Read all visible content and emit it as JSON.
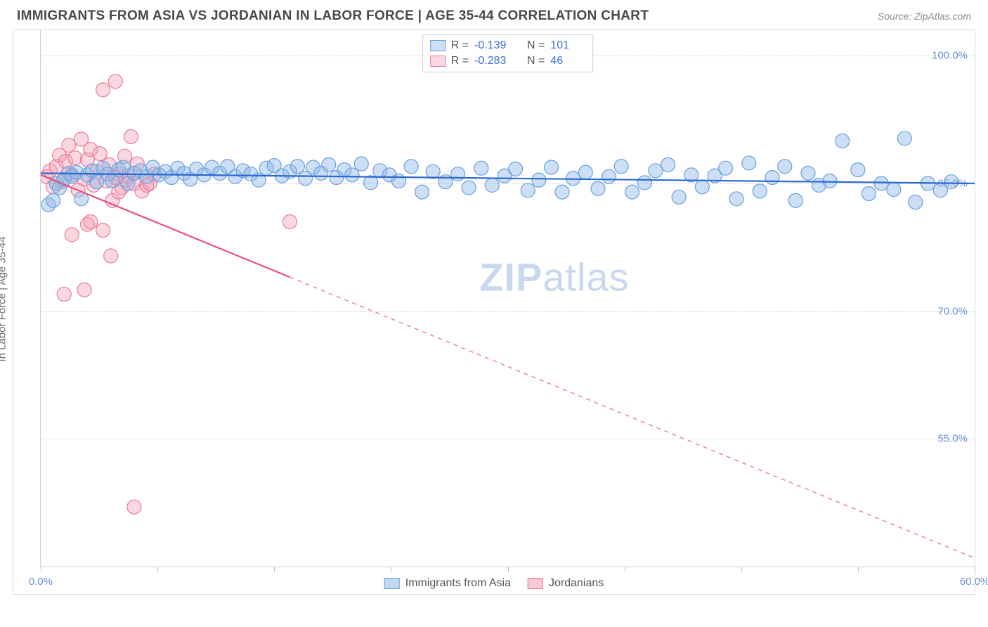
{
  "header": {
    "title": "IMMIGRANTS FROM ASIA VS JORDANIAN IN LABOR FORCE | AGE 35-44 CORRELATION CHART",
    "source": "Source: ZipAtlas.com"
  },
  "chart": {
    "type": "scatter",
    "ylabel": "In Labor Force | Age 35-44",
    "xlim": [
      0,
      60
    ],
    "ylim": [
      40,
      103
    ],
    "x_ticks": [
      0,
      7.5,
      15,
      22.5,
      30,
      37.5,
      45,
      52.5,
      60
    ],
    "x_tick_labels": {
      "0": "0.0%",
      "60": "60.0%"
    },
    "y_ticks": [
      55,
      70,
      85,
      100
    ],
    "y_tick_labels": {
      "55": "55.0%",
      "70": "70.0%",
      "85": "85.0%",
      "100": "100.0%"
    },
    "grid_color": "#d9d9d9",
    "background_color": "#ffffff",
    "axis_label_color": "#6a8fd8",
    "watermark": "ZIPatlas",
    "series": [
      {
        "name": "Immigrants from Asia",
        "marker_color": "#8fb9e8",
        "marker_fill": "rgba(143,185,232,0.45)",
        "marker_stroke": "#6aa0dd",
        "marker_radius": 10,
        "line_color": "#2b6ad0",
        "line_width": 2.2,
        "trend": {
          "x0": 0,
          "y0": 86.2,
          "x1": 60,
          "y1": 85.0
        },
        "R": "-0.139",
        "N": "101",
        "points": [
          [
            0.5,
            82.5
          ],
          [
            0.8,
            83.0
          ],
          [
            1.0,
            85.0
          ],
          [
            1.2,
            84.5
          ],
          [
            1.5,
            85.5
          ],
          [
            1.8,
            86.2
          ],
          [
            2.0,
            85.8
          ],
          [
            2.3,
            86.3
          ],
          [
            2.6,
            83.2
          ],
          [
            3.0,
            86.0
          ],
          [
            3.3,
            86.5
          ],
          [
            3.6,
            85.2
          ],
          [
            4.0,
            86.8
          ],
          [
            4.3,
            86.1
          ],
          [
            4.6,
            85.3
          ],
          [
            5.0,
            86.6
          ],
          [
            5.3,
            86.9
          ],
          [
            5.6,
            85.0
          ],
          [
            6.0,
            86.2
          ],
          [
            6.4,
            86.5
          ],
          [
            6.8,
            85.8
          ],
          [
            7.2,
            86.9
          ],
          [
            7.6,
            86.0
          ],
          [
            8.0,
            86.4
          ],
          [
            8.4,
            85.7
          ],
          [
            8.8,
            86.8
          ],
          [
            9.2,
            86.2
          ],
          [
            9.6,
            85.5
          ],
          [
            10.0,
            86.7
          ],
          [
            10.5,
            86.0
          ],
          [
            11.0,
            86.9
          ],
          [
            11.5,
            86.2
          ],
          [
            12.0,
            87.0
          ],
          [
            12.5,
            85.8
          ],
          [
            13.0,
            86.5
          ],
          [
            13.5,
            86.1
          ],
          [
            14.0,
            85.4
          ],
          [
            14.5,
            86.8
          ],
          [
            15.0,
            87.1
          ],
          [
            15.5,
            85.9
          ],
          [
            16.0,
            86.4
          ],
          [
            16.5,
            87.0
          ],
          [
            17.0,
            85.6
          ],
          [
            17.5,
            86.9
          ],
          [
            18.0,
            86.2
          ],
          [
            18.5,
            87.2
          ],
          [
            19.0,
            85.7
          ],
          [
            19.5,
            86.6
          ],
          [
            20.0,
            86.0
          ],
          [
            20.6,
            87.3
          ],
          [
            21.2,
            85.1
          ],
          [
            21.8,
            86.5
          ],
          [
            22.4,
            86.0
          ],
          [
            23.0,
            85.3
          ],
          [
            23.8,
            87.0
          ],
          [
            24.5,
            84.0
          ],
          [
            25.2,
            86.4
          ],
          [
            26.0,
            85.2
          ],
          [
            26.8,
            86.1
          ],
          [
            27.5,
            84.5
          ],
          [
            28.3,
            86.8
          ],
          [
            29.0,
            84.8
          ],
          [
            29.8,
            85.9
          ],
          [
            30.5,
            86.7
          ],
          [
            31.3,
            84.2
          ],
          [
            32.0,
            85.4
          ],
          [
            32.8,
            86.9
          ],
          [
            33.5,
            84.0
          ],
          [
            34.2,
            85.6
          ],
          [
            35.0,
            86.3
          ],
          [
            35.8,
            84.4
          ],
          [
            36.5,
            85.8
          ],
          [
            37.3,
            87.0
          ],
          [
            38.0,
            84.0
          ],
          [
            38.8,
            85.1
          ],
          [
            39.5,
            86.5
          ],
          [
            40.3,
            87.2
          ],
          [
            41.0,
            83.4
          ],
          [
            41.8,
            86.0
          ],
          [
            42.5,
            84.6
          ],
          [
            43.3,
            85.9
          ],
          [
            44.0,
            86.8
          ],
          [
            44.7,
            83.2
          ],
          [
            45.5,
            87.4
          ],
          [
            46.2,
            84.1
          ],
          [
            47.0,
            85.7
          ],
          [
            47.8,
            87.0
          ],
          [
            48.5,
            83.0
          ],
          [
            49.3,
            86.2
          ],
          [
            50.0,
            84.8
          ],
          [
            50.7,
            85.3
          ],
          [
            51.5,
            90.0
          ],
          [
            52.5,
            86.6
          ],
          [
            53.2,
            83.8
          ],
          [
            54.0,
            85.0
          ],
          [
            54.8,
            84.3
          ],
          [
            55.5,
            90.3
          ],
          [
            56.2,
            82.8
          ],
          [
            57.0,
            85.0
          ],
          [
            57.8,
            84.2
          ],
          [
            58.5,
            85.2
          ]
        ]
      },
      {
        "name": "Jordanians",
        "marker_color": "#f29db3",
        "marker_fill": "rgba(242,157,179,0.40)",
        "marker_stroke": "#ec7a98",
        "marker_radius": 10,
        "line_color": "#e8517a",
        "line_width": 2.2,
        "trend": {
          "x0": 0,
          "y0": 86.0,
          "x1": 16,
          "y1": 74.0
        },
        "trend_extrapolate": {
          "x0": 16,
          "y0": 74.0,
          "x1": 60,
          "y1": 41.0
        },
        "R": "-0.283",
        "N": "46",
        "points": [
          [
            0.4,
            85.8
          ],
          [
            0.6,
            86.5
          ],
          [
            0.8,
            84.6
          ],
          [
            1.0,
            87.0
          ],
          [
            1.2,
            88.3
          ],
          [
            1.4,
            85.2
          ],
          [
            1.6,
            87.6
          ],
          [
            1.8,
            89.5
          ],
          [
            2.0,
            86.0
          ],
          [
            2.2,
            88.0
          ],
          [
            2.4,
            84.2
          ],
          [
            2.6,
            90.2
          ],
          [
            2.8,
            85.5
          ],
          [
            3.0,
            87.8
          ],
          [
            3.2,
            89.0
          ],
          [
            3.4,
            84.8
          ],
          [
            3.6,
            86.4
          ],
          [
            3.8,
            88.5
          ],
          [
            4.0,
            96.0
          ],
          [
            4.2,
            85.3
          ],
          [
            4.4,
            87.2
          ],
          [
            4.6,
            83.0
          ],
          [
            4.8,
            97.0
          ],
          [
            5.0,
            86.1
          ],
          [
            5.2,
            84.5
          ],
          [
            5.4,
            88.2
          ],
          [
            5.6,
            85.9
          ],
          [
            5.8,
            90.5
          ],
          [
            6.0,
            85.0
          ],
          [
            6.2,
            87.3
          ],
          [
            6.5,
            84.1
          ],
          [
            2.0,
            79.0
          ],
          [
            3.0,
            80.2
          ],
          [
            4.0,
            79.5
          ],
          [
            5.5,
            85.4
          ],
          [
            6.8,
            84.8
          ],
          [
            1.5,
            72.0
          ],
          [
            2.8,
            72.5
          ],
          [
            4.5,
            76.5
          ],
          [
            3.2,
            80.5
          ],
          [
            6.0,
            47.0
          ],
          [
            7.0,
            85.0
          ],
          [
            7.3,
            86.1
          ],
          [
            16.0,
            80.5
          ],
          [
            5.0,
            84.0
          ],
          [
            4.8,
            85.7
          ]
        ]
      }
    ],
    "legend_bottom": [
      {
        "label": "Immigrants from Asia",
        "fill": "rgba(143,185,232,0.55)",
        "stroke": "#6aa0dd"
      },
      {
        "label": "Jordanians",
        "fill": "rgba(242,157,179,0.55)",
        "stroke": "#ec7a98"
      }
    ]
  }
}
